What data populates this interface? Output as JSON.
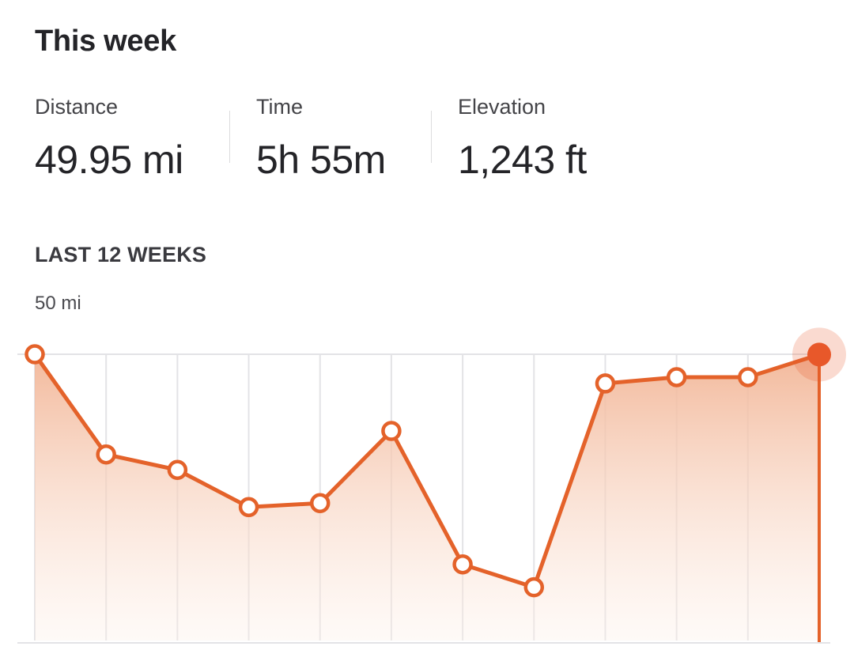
{
  "summary": {
    "title": "This week",
    "stats": [
      {
        "label": "Distance",
        "value": "49.95 mi"
      },
      {
        "label": "Time",
        "value": "5h 55m"
      },
      {
        "label": "Elevation",
        "value": "1,243 ft"
      }
    ]
  },
  "chart_data": {
    "type": "area",
    "title": "LAST 12 WEEKS",
    "y_max_label": "50 mi",
    "ylim": [
      0,
      50
    ],
    "grid": true,
    "series": [
      {
        "values": [
          50,
          32.5,
          29.8,
          23.3,
          24.0,
          36.6,
          13.3,
          9.3,
          44.9,
          46.0,
          46.0,
          49.95
        ]
      }
    ],
    "highlight_index": 11,
    "colors": {
      "line": "#e4622a",
      "highlight": "#e8582a",
      "fill_top": "#f2b596",
      "grid": "#e3e3e6"
    }
  }
}
